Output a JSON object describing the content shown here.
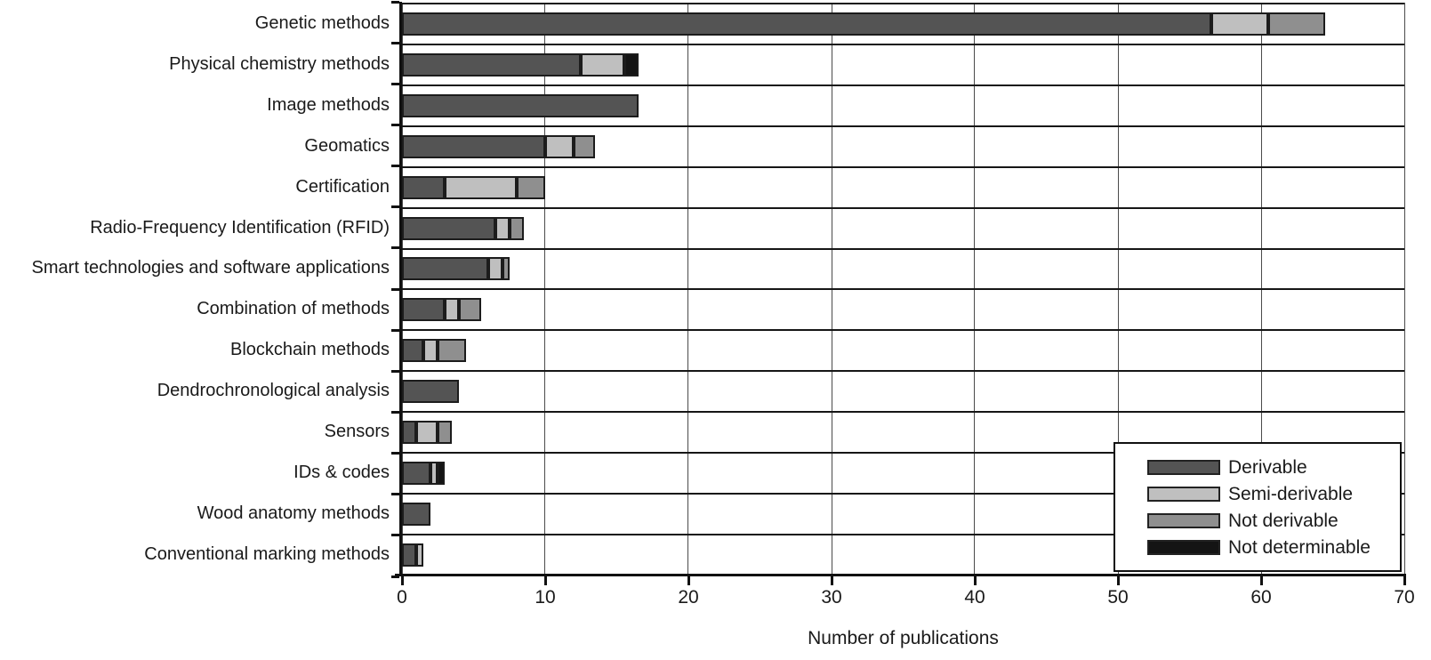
{
  "chart_data": {
    "type": "bar",
    "orientation": "horizontal-stacked",
    "title": "",
    "xlabel": "Number of publications",
    "ylabel": "",
    "xlim": [
      0,
      70
    ],
    "xticks": [
      0,
      10,
      20,
      30,
      40,
      50,
      60,
      70
    ],
    "grid": "vertical lines at every 10 units, horizontal separator line between category rows",
    "legend_position": "inside plot, bottom-right, white box with black border",
    "categories": [
      "Genetic methods",
      "Physical chemistry methods",
      "Image methods",
      "Geomatics",
      "Certification",
      "Radio-Frequency Identification (RFID)",
      "Smart technologies and software applications",
      "Combination of methods",
      "Blockchain methods",
      "Dendrochronological analysis",
      "Sensors",
      "IDs & codes",
      "Wood anatomy methods",
      "Conventional marking methods"
    ],
    "series": [
      {
        "name": "Derivable",
        "color": "#545454",
        "values": [
          56.5,
          12.5,
          16.5,
          10,
          3,
          6.5,
          6,
          3,
          1.5,
          4,
          1,
          2,
          2,
          1
        ]
      },
      {
        "name": "Semi-derivable",
        "color": "#bfbfbf",
        "values": [
          4,
          3,
          0,
          2,
          5,
          1,
          1,
          1,
          1,
          0,
          1.5,
          0.5,
          0,
          0.5
        ]
      },
      {
        "name": "Not derivable",
        "color": "#8f8f8f",
        "values": [
          4,
          0,
          0,
          1.5,
          2,
          1,
          0.5,
          1.5,
          2,
          0,
          1,
          0,
          0,
          0
        ]
      },
      {
        "name": "Not determinable",
        "color": "#141414",
        "values": [
          0,
          1,
          0,
          0,
          0,
          0,
          0,
          0,
          0,
          0,
          0,
          0.5,
          0,
          0
        ]
      }
    ],
    "axis_color": "#111111",
    "gridline_color": "#4b4b4b"
  }
}
